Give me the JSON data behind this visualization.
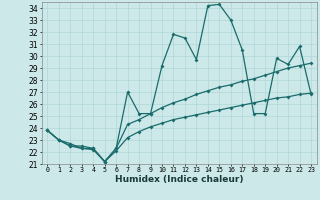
{
  "xlabel": "Humidex (Indice chaleur)",
  "background_color": "#cce8e8",
  "grid_color": "#b0d8d8",
  "line_color": "#1a6b6b",
  "xlim": [
    -0.5,
    23.5
  ],
  "ylim": [
    21,
    34.5
  ],
  "yticks": [
    21,
    22,
    23,
    24,
    25,
    26,
    27,
    28,
    29,
    30,
    31,
    32,
    33,
    34
  ],
  "xticks": [
    0,
    1,
    2,
    3,
    4,
    5,
    6,
    7,
    8,
    9,
    10,
    11,
    12,
    13,
    14,
    15,
    16,
    17,
    18,
    19,
    20,
    21,
    22,
    23
  ],
  "line1_x": [
    0,
    1,
    2,
    3,
    4,
    5,
    6,
    7,
    8,
    9,
    10,
    11,
    12,
    13,
    14,
    15,
    16,
    17,
    18,
    19,
    20,
    21,
    22,
    23
  ],
  "line1_y": [
    23.8,
    23.0,
    22.7,
    22.3,
    22.3,
    21.2,
    22.3,
    27.0,
    25.2,
    25.2,
    29.2,
    31.8,
    31.5,
    29.7,
    34.2,
    34.3,
    33.0,
    30.5,
    25.2,
    25.2,
    29.8,
    29.3,
    30.8,
    26.8
  ],
  "line2_x": [
    0,
    1,
    2,
    3,
    4,
    5,
    6,
    7,
    8,
    9,
    10,
    11,
    12,
    13,
    14,
    15,
    16,
    17,
    18,
    19,
    20,
    21,
    22,
    23
  ],
  "line2_y": [
    23.8,
    23.0,
    22.5,
    22.5,
    22.3,
    21.2,
    22.3,
    24.3,
    24.7,
    25.2,
    25.7,
    26.1,
    26.4,
    26.8,
    27.1,
    27.4,
    27.6,
    27.9,
    28.1,
    28.4,
    28.7,
    29.0,
    29.2,
    29.4
  ],
  "line3_x": [
    0,
    1,
    2,
    3,
    4,
    5,
    6,
    7,
    8,
    9,
    10,
    11,
    12,
    13,
    14,
    15,
    16,
    17,
    18,
    19,
    20,
    21,
    22,
    23
  ],
  "line3_y": [
    23.8,
    23.0,
    22.5,
    22.3,
    22.2,
    21.2,
    22.1,
    23.2,
    23.7,
    24.1,
    24.4,
    24.7,
    24.9,
    25.1,
    25.3,
    25.5,
    25.7,
    25.9,
    26.1,
    26.3,
    26.5,
    26.6,
    26.8,
    26.9
  ]
}
